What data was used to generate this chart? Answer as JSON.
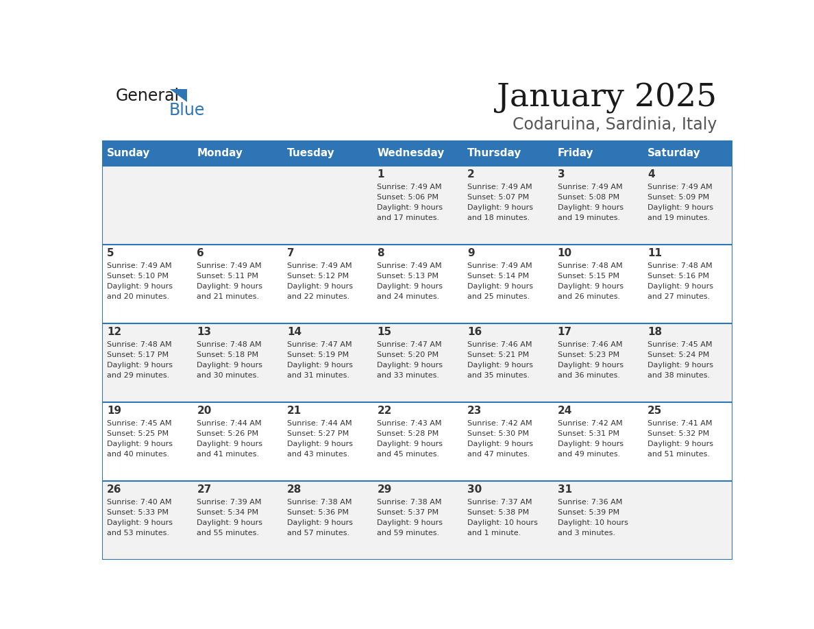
{
  "title": "January 2025",
  "subtitle": "Codaruina, Sardinia, Italy",
  "header_bg": "#2E75B6",
  "header_text_color": "#FFFFFF",
  "cell_bg_odd": "#F2F2F2",
  "cell_bg_even": "#FFFFFF",
  "day_names": [
    "Sunday",
    "Monday",
    "Tuesday",
    "Wednesday",
    "Thursday",
    "Friday",
    "Saturday"
  ],
  "row_separator_color": "#2E75B6",
  "day_number_color": "#333333",
  "cell_text_color": "#333333",
  "days": [
    {
      "day": 1,
      "col": 3,
      "row": 0,
      "sunrise": "7:49 AM",
      "sunset": "5:06 PM",
      "daylight_hours": 9,
      "daylight_minutes": 17
    },
    {
      "day": 2,
      "col": 4,
      "row": 0,
      "sunrise": "7:49 AM",
      "sunset": "5:07 PM",
      "daylight_hours": 9,
      "daylight_minutes": 18
    },
    {
      "day": 3,
      "col": 5,
      "row": 0,
      "sunrise": "7:49 AM",
      "sunset": "5:08 PM",
      "daylight_hours": 9,
      "daylight_minutes": 19
    },
    {
      "day": 4,
      "col": 6,
      "row": 0,
      "sunrise": "7:49 AM",
      "sunset": "5:09 PM",
      "daylight_hours": 9,
      "daylight_minutes": 19
    },
    {
      "day": 5,
      "col": 0,
      "row": 1,
      "sunrise": "7:49 AM",
      "sunset": "5:10 PM",
      "daylight_hours": 9,
      "daylight_minutes": 20
    },
    {
      "day": 6,
      "col": 1,
      "row": 1,
      "sunrise": "7:49 AM",
      "sunset": "5:11 PM",
      "daylight_hours": 9,
      "daylight_minutes": 21
    },
    {
      "day": 7,
      "col": 2,
      "row": 1,
      "sunrise": "7:49 AM",
      "sunset": "5:12 PM",
      "daylight_hours": 9,
      "daylight_minutes": 22
    },
    {
      "day": 8,
      "col": 3,
      "row": 1,
      "sunrise": "7:49 AM",
      "sunset": "5:13 PM",
      "daylight_hours": 9,
      "daylight_minutes": 24
    },
    {
      "day": 9,
      "col": 4,
      "row": 1,
      "sunrise": "7:49 AM",
      "sunset": "5:14 PM",
      "daylight_hours": 9,
      "daylight_minutes": 25
    },
    {
      "day": 10,
      "col": 5,
      "row": 1,
      "sunrise": "7:48 AM",
      "sunset": "5:15 PM",
      "daylight_hours": 9,
      "daylight_minutes": 26
    },
    {
      "day": 11,
      "col": 6,
      "row": 1,
      "sunrise": "7:48 AM",
      "sunset": "5:16 PM",
      "daylight_hours": 9,
      "daylight_minutes": 27
    },
    {
      "day": 12,
      "col": 0,
      "row": 2,
      "sunrise": "7:48 AM",
      "sunset": "5:17 PM",
      "daylight_hours": 9,
      "daylight_minutes": 29
    },
    {
      "day": 13,
      "col": 1,
      "row": 2,
      "sunrise": "7:48 AM",
      "sunset": "5:18 PM",
      "daylight_hours": 9,
      "daylight_minutes": 30
    },
    {
      "day": 14,
      "col": 2,
      "row": 2,
      "sunrise": "7:47 AM",
      "sunset": "5:19 PM",
      "daylight_hours": 9,
      "daylight_minutes": 31
    },
    {
      "day": 15,
      "col": 3,
      "row": 2,
      "sunrise": "7:47 AM",
      "sunset": "5:20 PM",
      "daylight_hours": 9,
      "daylight_minutes": 33
    },
    {
      "day": 16,
      "col": 4,
      "row": 2,
      "sunrise": "7:46 AM",
      "sunset": "5:21 PM",
      "daylight_hours": 9,
      "daylight_minutes": 35
    },
    {
      "day": 17,
      "col": 5,
      "row": 2,
      "sunrise": "7:46 AM",
      "sunset": "5:23 PM",
      "daylight_hours": 9,
      "daylight_minutes": 36
    },
    {
      "day": 18,
      "col": 6,
      "row": 2,
      "sunrise": "7:45 AM",
      "sunset": "5:24 PM",
      "daylight_hours": 9,
      "daylight_minutes": 38
    },
    {
      "day": 19,
      "col": 0,
      "row": 3,
      "sunrise": "7:45 AM",
      "sunset": "5:25 PM",
      "daylight_hours": 9,
      "daylight_minutes": 40
    },
    {
      "day": 20,
      "col": 1,
      "row": 3,
      "sunrise": "7:44 AM",
      "sunset": "5:26 PM",
      "daylight_hours": 9,
      "daylight_minutes": 41
    },
    {
      "day": 21,
      "col": 2,
      "row": 3,
      "sunrise": "7:44 AM",
      "sunset": "5:27 PM",
      "daylight_hours": 9,
      "daylight_minutes": 43
    },
    {
      "day": 22,
      "col": 3,
      "row": 3,
      "sunrise": "7:43 AM",
      "sunset": "5:28 PM",
      "daylight_hours": 9,
      "daylight_minutes": 45
    },
    {
      "day": 23,
      "col": 4,
      "row": 3,
      "sunrise": "7:42 AM",
      "sunset": "5:30 PM",
      "daylight_hours": 9,
      "daylight_minutes": 47
    },
    {
      "day": 24,
      "col": 5,
      "row": 3,
      "sunrise": "7:42 AM",
      "sunset": "5:31 PM",
      "daylight_hours": 9,
      "daylight_minutes": 49
    },
    {
      "day": 25,
      "col": 6,
      "row": 3,
      "sunrise": "7:41 AM",
      "sunset": "5:32 PM",
      "daylight_hours": 9,
      "daylight_minutes": 51
    },
    {
      "day": 26,
      "col": 0,
      "row": 4,
      "sunrise": "7:40 AM",
      "sunset": "5:33 PM",
      "daylight_hours": 9,
      "daylight_minutes": 53
    },
    {
      "day": 27,
      "col": 1,
      "row": 4,
      "sunrise": "7:39 AM",
      "sunset": "5:34 PM",
      "daylight_hours": 9,
      "daylight_minutes": 55
    },
    {
      "day": 28,
      "col": 2,
      "row": 4,
      "sunrise": "7:38 AM",
      "sunset": "5:36 PM",
      "daylight_hours": 9,
      "daylight_minutes": 57
    },
    {
      "day": 29,
      "col": 3,
      "row": 4,
      "sunrise": "7:38 AM",
      "sunset": "5:37 PM",
      "daylight_hours": 9,
      "daylight_minutes": 59
    },
    {
      "day": 30,
      "col": 4,
      "row": 4,
      "sunrise": "7:37 AM",
      "sunset": "5:38 PM",
      "daylight_hours": 10,
      "daylight_minutes": 1
    },
    {
      "day": 31,
      "col": 5,
      "row": 4,
      "sunrise": "7:36 AM",
      "sunset": "5:39 PM",
      "daylight_hours": 10,
      "daylight_minutes": 3
    }
  ]
}
